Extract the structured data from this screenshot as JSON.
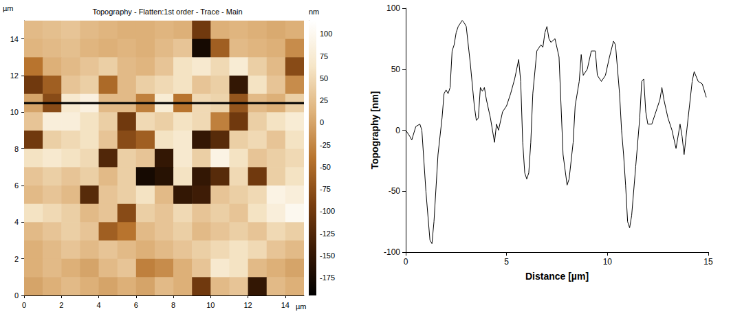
{
  "chart_data": [
    {
      "type": "heatmap",
      "title": "Topography - Flatten:1st order - Trace - Main",
      "x_label": "µm",
      "y_label": "µm",
      "x": [
        0.5,
        1.5,
        2.5,
        3.5,
        4.5,
        5.5,
        6.5,
        7.5,
        8.5,
        9.5,
        10.5,
        11.5,
        12.5,
        13.5,
        14.5
      ],
      "y": [
        14.5,
        13.5,
        12.5,
        11.5,
        10.5,
        9.5,
        8.5,
        7.5,
        6.5,
        5.5,
        4.5,
        3.5,
        2.5,
        1.5,
        0.5
      ],
      "values": [
        [
          20,
          25,
          30,
          20,
          15,
          10,
          10,
          15,
          10,
          -100,
          10,
          15,
          10,
          5,
          10
        ],
        [
          15,
          20,
          25,
          15,
          10,
          15,
          10,
          20,
          30,
          -175,
          -60,
          20,
          15,
          10,
          -20
        ],
        [
          -40,
          10,
          20,
          30,
          40,
          20,
          15,
          30,
          60,
          70,
          50,
          75,
          40,
          20,
          -80
        ],
        [
          -100,
          -60,
          30,
          40,
          -50,
          20,
          40,
          50,
          60,
          30,
          40,
          -150,
          60,
          30,
          -20
        ],
        [
          0,
          -80,
          70,
          85,
          20,
          20,
          -30,
          75,
          -40,
          50,
          45,
          -70,
          20,
          10,
          40
        ],
        [
          30,
          80,
          80,
          60,
          40,
          -100,
          50,
          40,
          60,
          50,
          -30,
          -100,
          40,
          60,
          75
        ],
        [
          -100,
          40,
          50,
          60,
          30,
          -80,
          -60,
          60,
          70,
          -150,
          -120,
          40,
          50,
          30,
          60
        ],
        [
          60,
          70,
          60,
          50,
          -125,
          40,
          30,
          -150,
          70,
          40,
          90,
          60,
          30,
          40,
          50
        ],
        [
          30,
          40,
          30,
          40,
          20,
          40,
          -175,
          -160,
          60,
          -150,
          -120,
          50,
          -100,
          40,
          60
        ],
        [
          20,
          30,
          20,
          -120,
          30,
          40,
          60,
          20,
          -150,
          -140,
          30,
          40,
          50,
          90,
          80
        ],
        [
          60,
          50,
          40,
          20,
          30,
          -80,
          40,
          30,
          50,
          30,
          40,
          30,
          60,
          80,
          100
        ],
        [
          20,
          30,
          40,
          30,
          -60,
          -40,
          20,
          30,
          40,
          20,
          30,
          40,
          30,
          50,
          40
        ],
        [
          10,
          20,
          30,
          20,
          30,
          20,
          10,
          20,
          30,
          40,
          50,
          60,
          50,
          30,
          20
        ],
        [
          10,
          20,
          10,
          0,
          20,
          30,
          -30,
          -20,
          10,
          30,
          70,
          60,
          20,
          10,
          0
        ],
        [
          0,
          10,
          20,
          10,
          0,
          10,
          0,
          20,
          10,
          -100,
          20,
          30,
          -150,
          20,
          10
        ]
      ],
      "xlim": [
        0,
        15
      ],
      "ylim": [
        0,
        15
      ],
      "xticks": [
        0,
        2,
        4,
        6,
        8,
        10,
        12,
        14
      ],
      "yticks": [
        0,
        2,
        4,
        6,
        8,
        10,
        12,
        14
      ],
      "colorbar": {
        "label": "nm",
        "range": [
          -195,
          115
        ],
        "ticks": [
          -175,
          -150,
          -125,
          -100,
          -75,
          -50,
          -25,
          0,
          25,
          50,
          75,
          100
        ]
      },
      "profile_line_y": 10.5
    },
    {
      "type": "line",
      "x_label": "Distance [µm]",
      "y_label": "Topography [nm]",
      "x": [
        0,
        0.2,
        0.3,
        0.5,
        0.7,
        0.8,
        1.0,
        1.2,
        1.3,
        1.4,
        1.6,
        1.8,
        1.9,
        2.0,
        2.1,
        2.2,
        2.3,
        2.4,
        2.5,
        2.6,
        2.8,
        2.9,
        3.0,
        3.2,
        3.4,
        3.5,
        3.6,
        3.7,
        3.8,
        3.9,
        4.0,
        4.2,
        4.4,
        4.5,
        4.6,
        4.8,
        5.0,
        5.2,
        5.4,
        5.6,
        5.7,
        5.8,
        5.9,
        6.0,
        6.1,
        6.2,
        6.3,
        6.5,
        6.7,
        6.8,
        6.9,
        7.0,
        7.1,
        7.2,
        7.4,
        7.6,
        7.8,
        8.0,
        8.1,
        8.3,
        8.4,
        8.6,
        8.7,
        8.8,
        9.0,
        9.2,
        9.4,
        9.5,
        9.7,
        9.9,
        10.1,
        10.3,
        10.4,
        10.5,
        10.6,
        10.7,
        10.8,
        10.9,
        11.0,
        11.1,
        11.2,
        11.4,
        11.6,
        11.7,
        11.8,
        11.9,
        12.0,
        12.2,
        12.4,
        12.6,
        12.7,
        12.8,
        13.0,
        13.2,
        13.4,
        13.6,
        13.7,
        13.8,
        14.0,
        14.2,
        14.3,
        14.5,
        14.7,
        14.9
      ],
      "values": [
        0,
        -5,
        -8,
        3,
        5,
        0,
        -50,
        -90,
        -93,
        -75,
        -20,
        10,
        30,
        33,
        30,
        35,
        65,
        70,
        80,
        85,
        90,
        88,
        85,
        55,
        20,
        8,
        10,
        35,
        32,
        35,
        25,
        10,
        -10,
        5,
        0,
        15,
        20,
        30,
        42,
        58,
        40,
        -10,
        -35,
        -40,
        -35,
        -10,
        30,
        65,
        70,
        68,
        80,
        85,
        75,
        72,
        75,
        60,
        -20,
        -45,
        -40,
        -10,
        20,
        40,
        62,
        45,
        50,
        65,
        65,
        45,
        40,
        45,
        60,
        73,
        70,
        50,
        30,
        0,
        -20,
        -45,
        -75,
        -80,
        -70,
        -30,
        10,
        40,
        42,
        15,
        5,
        5,
        15,
        25,
        35,
        25,
        10,
        0,
        -15,
        5,
        -5,
        -20,
        10,
        40,
        48,
        40,
        38,
        27
      ],
      "xlim": [
        0,
        15
      ],
      "ylim": [
        -100,
        100
      ],
      "xticks": [
        0,
        5,
        10,
        15
      ],
      "yticks": [
        -100,
        -50,
        0,
        50,
        100
      ],
      "color": "#000000",
      "grid": false
    }
  ]
}
